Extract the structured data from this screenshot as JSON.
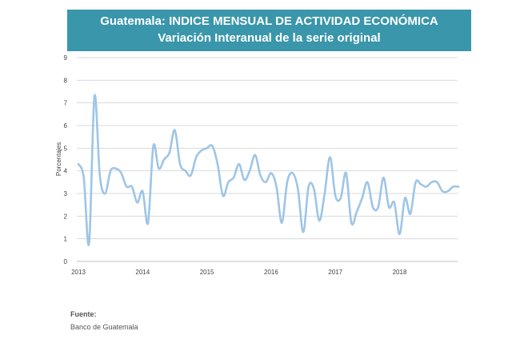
{
  "header": {
    "title": "Guatemala: INDICE MENSUAL DE ACTIVIDAD ECONÓMICA",
    "subtitle": "Variación Interanual de la serie original"
  },
  "source": {
    "label": "Fuente:",
    "text": "Banco de Guatemala"
  },
  "colors": {
    "banner": "#3a96aa",
    "line": "#9ec5e6",
    "grid": "#d9d9d9"
  },
  "chart_data": {
    "type": "line",
    "title": "",
    "xlabel": "",
    "ylabel": "Porcentajes",
    "ylim": [
      0,
      9
    ],
    "yticks": [
      "0",
      "1",
      "2",
      "3",
      "4",
      "5",
      "6",
      "7",
      "8",
      "9"
    ],
    "xticks": [
      "2013",
      "2014",
      "2015",
      "2016",
      "2017",
      "2018"
    ],
    "grid": "horizontal",
    "series": [
      {
        "x": [
          "2013-01",
          "2013-02",
          "2013-03",
          "2013-04",
          "2013-05",
          "2013-06",
          "2013-07",
          "2013-08",
          "2013-09",
          "2013-10",
          "2013-11",
          "2013-12",
          "2014-01",
          "2014-02",
          "2014-03",
          "2014-04",
          "2014-05",
          "2014-06",
          "2014-07",
          "2014-08",
          "2014-09",
          "2014-10",
          "2014-11",
          "2014-12",
          "2015-01",
          "2015-02",
          "2015-03",
          "2015-04",
          "2015-05",
          "2015-06",
          "2015-07",
          "2015-08",
          "2015-09",
          "2015-10",
          "2015-11",
          "2015-12",
          "2016-01",
          "2016-02",
          "2016-03",
          "2016-04",
          "2016-05",
          "2016-06",
          "2016-07",
          "2016-08",
          "2016-09",
          "2016-10",
          "2016-11",
          "2016-12",
          "2017-01",
          "2017-02",
          "2017-03",
          "2017-04",
          "2017-05",
          "2017-06",
          "2017-07",
          "2017-08",
          "2017-09",
          "2017-10",
          "2017-11",
          "2017-12",
          "2018-01",
          "2018-02",
          "2018-03",
          "2018-04",
          "2018-05",
          "2018-06",
          "2018-07",
          "2018-08",
          "2018-09",
          "2018-10",
          "2018-11",
          "2018-12"
        ],
        "values": [
          4.3,
          3.7,
          0.8,
          7.3,
          3.8,
          3.0,
          4.0,
          4.1,
          3.9,
          3.3,
          3.3,
          2.6,
          3.1,
          1.7,
          5.1,
          4.1,
          4.5,
          4.8,
          5.8,
          4.3,
          4.0,
          3.8,
          4.6,
          4.9,
          5.0,
          5.1,
          4.3,
          2.9,
          3.5,
          3.7,
          4.3,
          3.6,
          4.0,
          4.7,
          3.8,
          3.5,
          3.9,
          3.3,
          1.7,
          3.5,
          3.9,
          3.2,
          1.3,
          3.3,
          3.2,
          1.8,
          3.0,
          4.6,
          2.9,
          2.8,
          3.9,
          1.7,
          2.2,
          2.8,
          3.5,
          2.4,
          2.4,
          3.7,
          2.4,
          2.6,
          1.2,
          2.8,
          2.1,
          3.5,
          3.4,
          3.3,
          3.5,
          3.5,
          3.1,
          3.1,
          3.3,
          3.3
        ]
      }
    ]
  }
}
